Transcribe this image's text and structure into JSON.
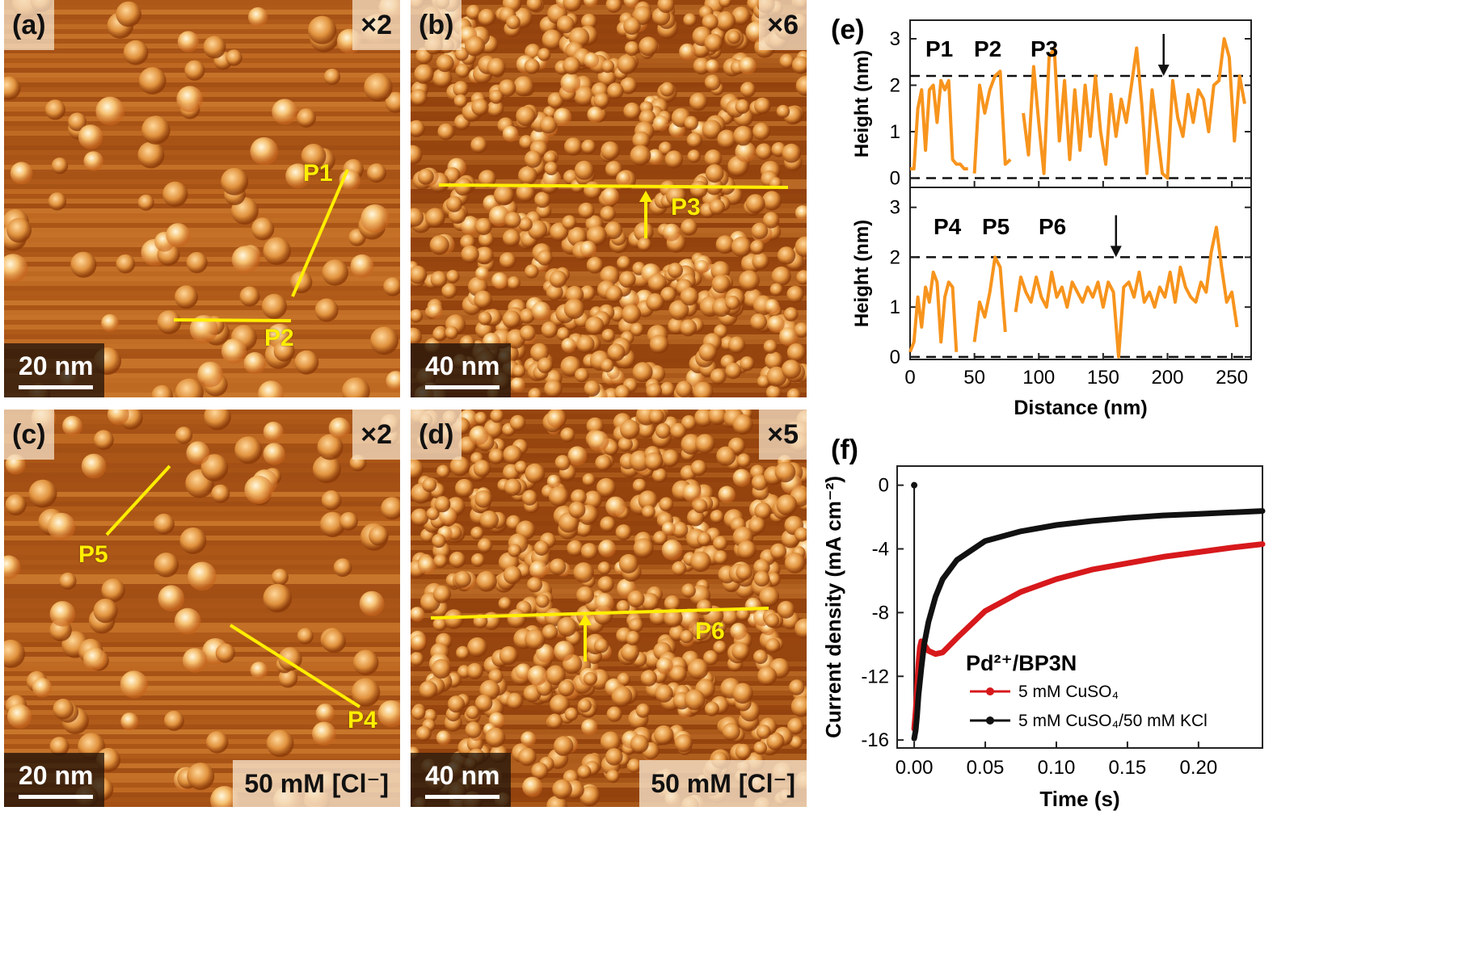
{
  "panels": {
    "a": {
      "label": "(a)",
      "mult": "×2",
      "scale": "20 nm",
      "seed": 11,
      "p1": "P1",
      "p2": "P2"
    },
    "b": {
      "label": "(b)",
      "mult": "×6",
      "scale": "40 nm",
      "seed": 23,
      "p3": "P3"
    },
    "c": {
      "label": "(c)",
      "mult": "×2",
      "scale": "20 nm",
      "conc": "50 mM [Cl⁻]",
      "seed": 37,
      "p4": "P4",
      "p5": "P5"
    },
    "d": {
      "label": "(d)",
      "mult": "×5",
      "scale": "40 nm",
      "conc": "50 mM [Cl⁻]",
      "seed": 53,
      "p6": "P6"
    }
  },
  "chart_data": [
    {
      "type": "line",
      "panel_label": "(e)",
      "xlabel": "Distance (nm)",
      "ylabel": "Height (nm)",
      "xlim": [
        0,
        265
      ],
      "xticks": [
        0,
        50,
        100,
        150,
        200,
        250
      ],
      "subplots": [
        {
          "ylim": [
            -0.2,
            3.4
          ],
          "yticks": [
            0,
            1,
            2,
            3
          ],
          "dashed": [
            0,
            2.2
          ],
          "profile_labels": [
            "P1",
            "P2",
            "P3"
          ],
          "arrow_x": 197,
          "color": "#f7941d",
          "segments": [
            {
              "x": [
                0,
                3,
                6,
                9,
                12,
                15,
                18,
                21,
                24,
                27,
                30,
                33,
                36,
                39,
                42,
                45
              ],
              "y": [
                0.2,
                0.2,
                1.5,
                1.9,
                0.6,
                1.9,
                2.0,
                1.2,
                2.1,
                1.9,
                2.1,
                0.4,
                0.3,
                0.3,
                0.2,
                0.2
              ]
            },
            {
              "x": [
                50,
                54,
                58,
                62,
                66,
                70,
                74,
                78
              ],
              "y": [
                0.1,
                2.0,
                1.4,
                1.9,
                2.2,
                2.3,
                0.3,
                0.4
              ]
            },
            {
              "x": [
                88,
                92,
                96,
                100,
                104,
                108,
                112,
                116,
                120,
                124,
                128,
                132,
                136,
                140,
                144,
                148,
                152,
                156,
                160,
                164,
                168,
                172,
                176,
                180,
                184,
                188,
                192,
                196,
                200,
                204,
                208,
                212,
                216,
                220,
                224,
                228,
                232,
                236,
                240,
                244,
                248,
                252,
                256,
                260
              ],
              "y": [
                1.4,
                0.5,
                2.4,
                1.2,
                0.1,
                2.6,
                2.8,
                0.8,
                2.1,
                0.4,
                1.9,
                0.6,
                2.0,
                0.9,
                2.2,
                1.0,
                0.3,
                1.8,
                0.9,
                1.7,
                1.2,
                2.0,
                2.8,
                1.6,
                0.1,
                1.9,
                1.0,
                0.1,
                0.0,
                2.1,
                1.3,
                0.9,
                1.8,
                1.2,
                1.9,
                1.7,
                1.0,
                2.0,
                2.1,
                3.0,
                2.6,
                0.8,
                2.2,
                1.6
              ]
            }
          ]
        },
        {
          "ylim": [
            -0.05,
            3.4
          ],
          "yticks": [
            0,
            1,
            2,
            3
          ],
          "dashed": [
            0,
            2.0
          ],
          "profile_labels": [
            "P4",
            "P5",
            "P6"
          ],
          "arrow_x": 160,
          "color": "#f7941d",
          "segments": [
            {
              "x": [
                0,
                3,
                6,
                9,
                12,
                15,
                18,
                21,
                24,
                27,
                30,
                33,
                36
              ],
              "y": [
                0.1,
                0.3,
                1.2,
                0.6,
                1.4,
                1.1,
                1.7,
                1.5,
                0.3,
                1.2,
                1.5,
                1.4,
                0.1
              ]
            },
            {
              "x": [
                50,
                54,
                58,
                62,
                66,
                70,
                74
              ],
              "y": [
                0.3,
                1.1,
                0.8,
                1.3,
                2.0,
                1.8,
                0.5
              ]
            },
            {
              "x": [
                82,
                86,
                90,
                94,
                98,
                102,
                106,
                110,
                114,
                118,
                122,
                126,
                130,
                134,
                138,
                142,
                146,
                150,
                154,
                158,
                162,
                166,
                170,
                174,
                178,
                182,
                186,
                190,
                194,
                198,
                202,
                206,
                210,
                214,
                218,
                222,
                226,
                230,
                234,
                238,
                242,
                246,
                250,
                254
              ],
              "y": [
                0.9,
                1.6,
                1.3,
                1.1,
                1.6,
                1.2,
                1.0,
                1.7,
                1.2,
                1.4,
                1.0,
                1.5,
                1.3,
                1.1,
                1.4,
                1.2,
                1.5,
                1.0,
                1.5,
                1.3,
                0.0,
                1.4,
                1.5,
                1.2,
                1.7,
                1.1,
                1.3,
                1.0,
                1.4,
                1.2,
                1.7,
                1.1,
                1.8,
                1.4,
                1.2,
                1.1,
                1.5,
                1.3,
                2.1,
                2.6,
                1.8,
                1.1,
                1.3,
                0.6
              ]
            }
          ]
        }
      ]
    },
    {
      "type": "line",
      "panel_label": "(f)",
      "xlabel": "Time (s)",
      "ylabel": "Current density (mA cm⁻²)",
      "xlim": [
        -0.012,
        0.245
      ],
      "ylim": [
        -16.5,
        1.2
      ],
      "xticks": [
        0.0,
        0.05,
        0.1,
        0.15,
        0.2
      ],
      "xticklabels": [
        "0.00",
        "0.05",
        "0.10",
        "0.15",
        "0.20"
      ],
      "yticks": [
        0,
        -4,
        -8,
        -12,
        -16
      ],
      "legend_title": "Pd²⁺/BP3N",
      "series": [
        {
          "name": "5 mM CuSO₄",
          "color": "#d7191c",
          "x": [
            0.0,
            0.001,
            0.002,
            0.003,
            0.004,
            0.005,
            0.007,
            0.01,
            0.015,
            0.02,
            0.03,
            0.05,
            0.075,
            0.1,
            0.125,
            0.15,
            0.175,
            0.2,
            0.225,
            0.245
          ],
          "y": [
            -15.3,
            -14.2,
            -12.8,
            -11.2,
            -10.2,
            -9.8,
            -10.0,
            -10.4,
            -10.6,
            -10.5,
            -9.6,
            -7.9,
            -6.7,
            -5.9,
            -5.3,
            -4.9,
            -4.5,
            -4.2,
            -3.9,
            -3.7
          ]
        },
        {
          "name": "5 mM CuSO₄/50 mM KCl",
          "color": "#111111",
          "x": [
            0.0,
            0.001,
            0.002,
            0.003,
            0.005,
            0.007,
            0.01,
            0.015,
            0.02,
            0.03,
            0.05,
            0.075,
            0.1,
            0.125,
            0.15,
            0.175,
            0.2,
            0.225,
            0.245
          ],
          "y": [
            -15.9,
            -15.4,
            -14.5,
            -13.2,
            -11.5,
            -10.0,
            -8.6,
            -7.0,
            -5.9,
            -4.7,
            -3.5,
            -2.9,
            -2.5,
            -2.25,
            -2.05,
            -1.9,
            -1.8,
            -1.7,
            -1.62
          ]
        }
      ]
    }
  ]
}
